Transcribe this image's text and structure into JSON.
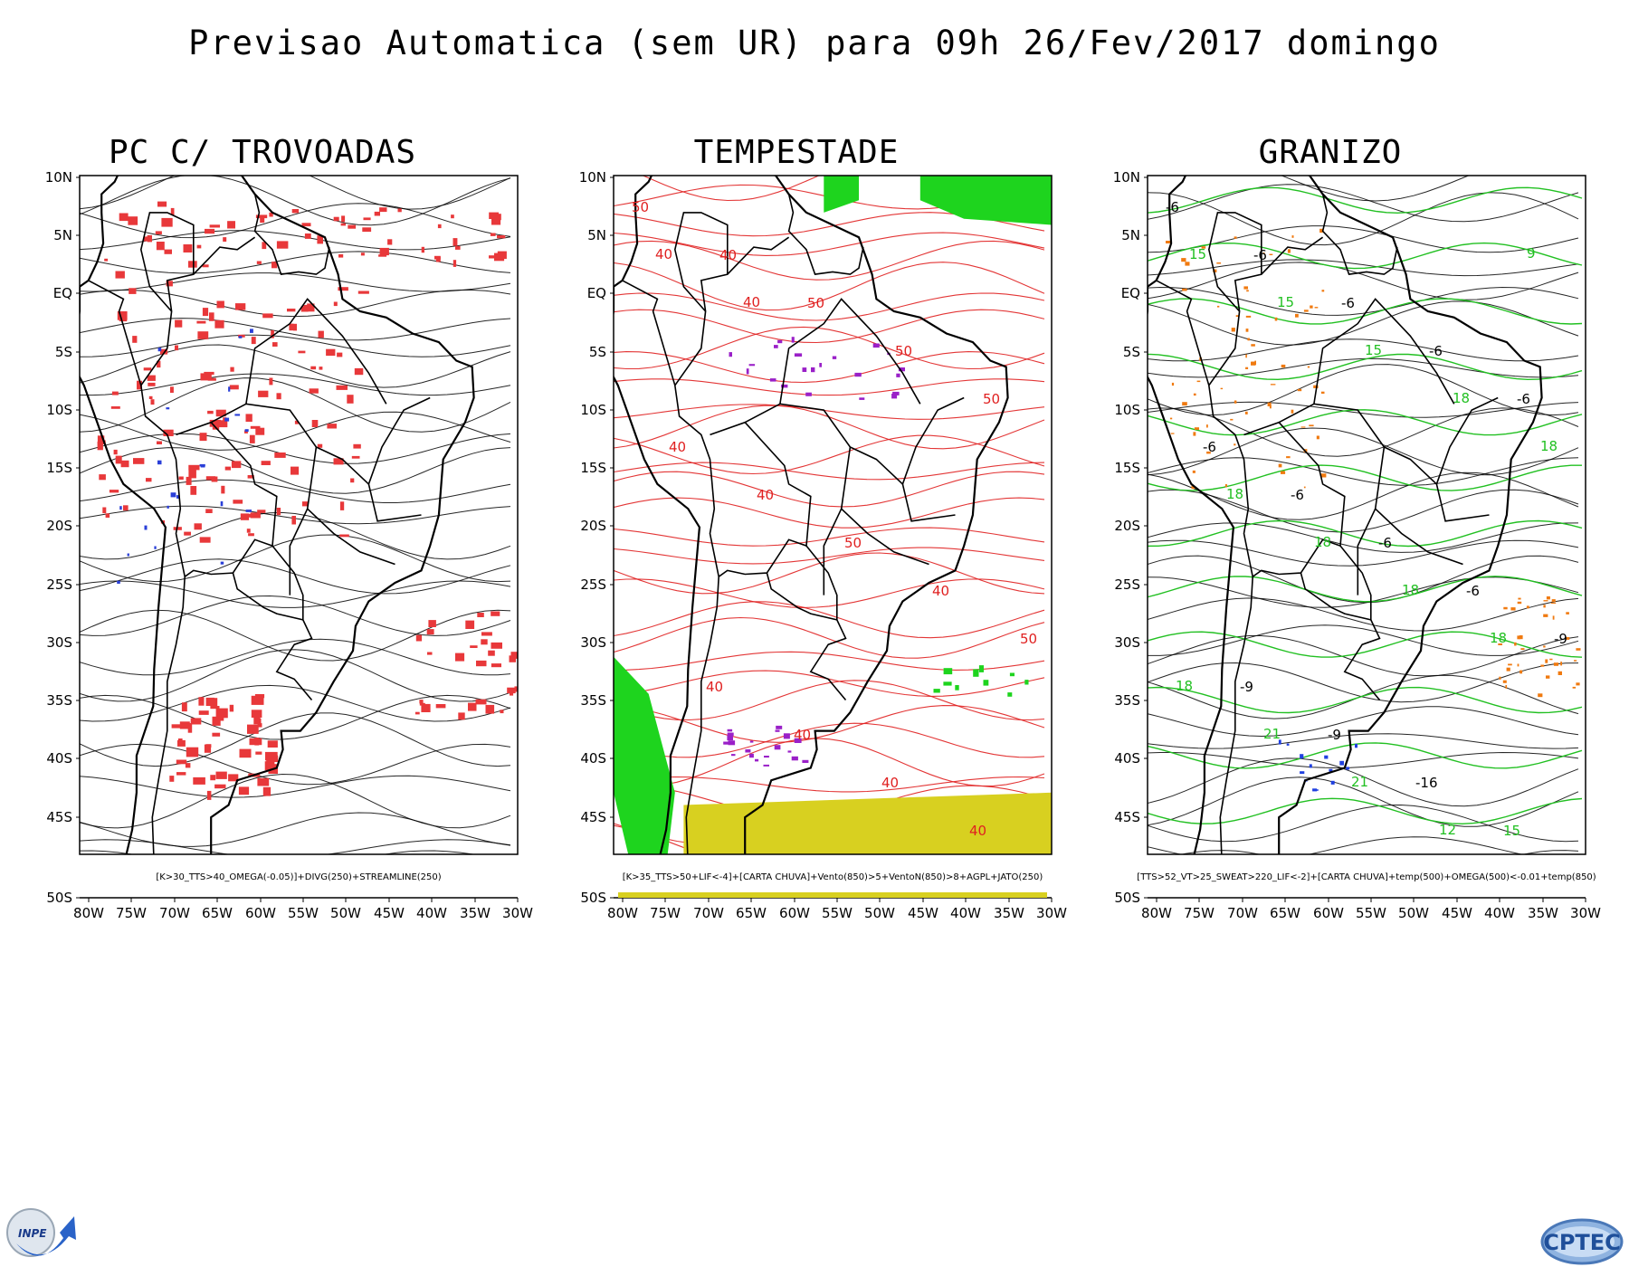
{
  "title": "Previsao Automatica (sem UR) para 09h 26/Fev/2017 domingo",
  "panels": [
    {
      "title": "PC C/ TROVOADAS",
      "caption": "[K>30_TTS>40_OMEGA(-0.05)]+DIVG(250)+STREAMLINE(250)",
      "line_color": "#000000",
      "colors": {
        "convective": "#e8383a",
        "divergence": "#2a3fd8"
      },
      "contour_labels": []
    },
    {
      "title": "TEMPESTADE",
      "caption": "[K>35_TTS>50+LIF<-4]+[CARTA CHUVA]+Vento(850)>5+VentoN(850)>8+AGPL+JATO(250)",
      "line_color": "#e02020",
      "colors": {
        "jet": "#1ed41e",
        "storm": "#9a20c8",
        "agpl": "#d8d020"
      },
      "contour_labels": [
        "50",
        "40",
        "50",
        "50",
        "50",
        "40",
        "40",
        "50",
        "40",
        "50",
        "40",
        "40",
        "40",
        "40",
        "40",
        "40"
      ]
    },
    {
      "title": "GRANIZO",
      "caption": "[TTS>52_VT>25_SWEAT>220_LIF<-2]+[CARTA CHUVA]+temp(500)+OMEGA(500)<-0.01+temp(850)",
      "line_color": "#000000",
      "colors": {
        "temp850": "#22c022",
        "omega": "#f07a10",
        "hail": "#2040e0"
      },
      "contour_labels": [
        "-6",
        "-6",
        "-6",
        "-6",
        "-6",
        "-6",
        "-6",
        "-6",
        "-6",
        "-9",
        "-9",
        "-9",
        "-16",
        "15",
        "15",
        "15",
        "15",
        "18",
        "18",
        "18",
        "18",
        "18",
        "18",
        "18",
        "21",
        "21",
        "12",
        "9"
      ]
    }
  ],
  "axes": {
    "lat_labels": [
      "10N",
      "5N",
      "EQ",
      "5S",
      "10S",
      "15S",
      "20S",
      "25S",
      "30S",
      "35S",
      "40S",
      "45S",
      "50S"
    ],
    "lon_labels": [
      "80W",
      "75W",
      "70W",
      "65W",
      "60W",
      "55W",
      "50W",
      "45W",
      "40W",
      "35W",
      "30W"
    ]
  },
  "logos": {
    "left": "INPE",
    "right": "CPTEC"
  }
}
